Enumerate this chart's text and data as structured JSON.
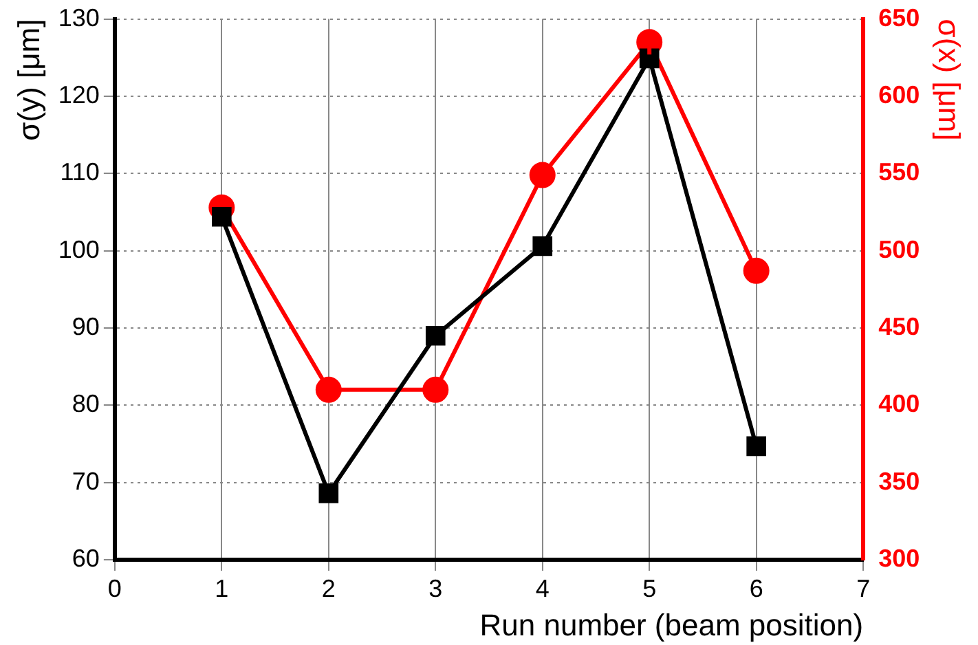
{
  "chart_data": {
    "type": "line",
    "xlabel": "Run number (beam position)",
    "ylabel": "σ(y) [μm]",
    "y2label": "σ(x) [μm]",
    "x": [
      1,
      2,
      3,
      4,
      5,
      6
    ],
    "xlim": [
      0,
      7
    ],
    "xticks": [
      0,
      1,
      2,
      3,
      4,
      5,
      6,
      7
    ],
    "ylim": [
      60,
      130
    ],
    "yticks": [
      60,
      70,
      80,
      90,
      100,
      110,
      120,
      130
    ],
    "y2lim": [
      300,
      650
    ],
    "y2ticks": [
      300,
      350,
      400,
      450,
      500,
      550,
      600,
      650
    ],
    "grid": true,
    "legend": false,
    "line_style": "solid",
    "series": [
      {
        "color": "#000000",
        "marker": "square",
        "values": [
          104.4,
          68.6,
          89.0,
          100.6,
          124.9,
          74.7
        ]
      },
      {
        "color": "#ff0000",
        "marker": "circle",
        "axis": "y2",
        "values": [
          528,
          410,
          410,
          549,
          635,
          487
        ],
        "errors": [
          null,
          null,
          null,
          null,
          8,
          null
        ]
      }
    ]
  }
}
